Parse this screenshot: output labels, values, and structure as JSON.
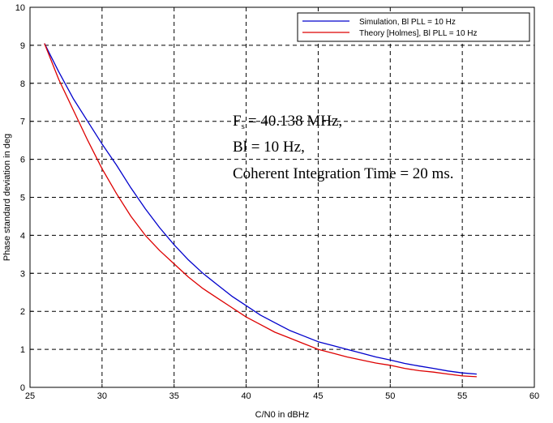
{
  "chart_data": {
    "type": "line",
    "xlabel": "C/N0 in dBHz",
    "ylabel": "Phase standard deviation in deg",
    "xlim": [
      25,
      60
    ],
    "ylim": [
      0,
      10
    ],
    "xticks": [
      25,
      30,
      35,
      40,
      45,
      50,
      55,
      60
    ],
    "yticks": [
      0,
      1,
      2,
      3,
      4,
      5,
      6,
      7,
      8,
      9,
      10
    ],
    "grid": true,
    "legend_position": "top-right",
    "series": [
      {
        "name": "Simulation, Bl PLL = 10 Hz",
        "color": "#0000cc",
        "x": [
          26,
          27,
          28,
          29,
          30,
          31,
          32,
          33,
          34,
          35,
          36,
          37,
          38,
          39,
          40,
          41,
          42,
          43,
          44,
          45,
          46,
          47,
          48,
          49,
          50,
          51,
          52,
          53,
          54,
          55,
          56
        ],
        "y": [
          9.05,
          8.3,
          7.6,
          7.0,
          6.4,
          5.85,
          5.25,
          4.7,
          4.2,
          3.75,
          3.35,
          3.0,
          2.7,
          2.4,
          2.15,
          1.9,
          1.7,
          1.5,
          1.35,
          1.2,
          1.1,
          1.0,
          0.9,
          0.8,
          0.72,
          0.63,
          0.56,
          0.5,
          0.43,
          0.38,
          0.35
        ]
      },
      {
        "name": "Theory [Holmes], Bl PLL = 10 Hz",
        "color": "#dd0000",
        "x": [
          26,
          27,
          28,
          29,
          30,
          31,
          32,
          33,
          34,
          35,
          36,
          37,
          38,
          39,
          40,
          41,
          42,
          43,
          44,
          45,
          46,
          47,
          48,
          49,
          50,
          51,
          52,
          53,
          54,
          55,
          56
        ],
        "y": [
          9.05,
          8.1,
          7.3,
          6.5,
          5.75,
          5.1,
          4.5,
          4.0,
          3.6,
          3.25,
          2.9,
          2.6,
          2.35,
          2.1,
          1.85,
          1.65,
          1.45,
          1.3,
          1.15,
          1.0,
          0.9,
          0.8,
          0.72,
          0.64,
          0.58,
          0.5,
          0.44,
          0.4,
          0.35,
          0.3,
          0.28
        ]
      }
    ],
    "annotations": [
      {
        "lines": [
          "F",
          "= 40.138 MHz,"
        ],
        "subscript": "s"
      },
      {
        "text": "Bl = 10 Hz,"
      },
      {
        "text": "Coherent Integration Time = 20 ms."
      }
    ]
  }
}
